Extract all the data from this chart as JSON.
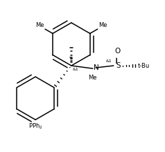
{
  "background_color": "#ffffff",
  "line_color": "#000000",
  "line_width": 1.1,
  "fig_width": 2.38,
  "fig_height": 2.2,
  "dpi": 100,
  "xlim": [
    0,
    10
  ],
  "ylim": [
    0,
    9.5
  ]
}
